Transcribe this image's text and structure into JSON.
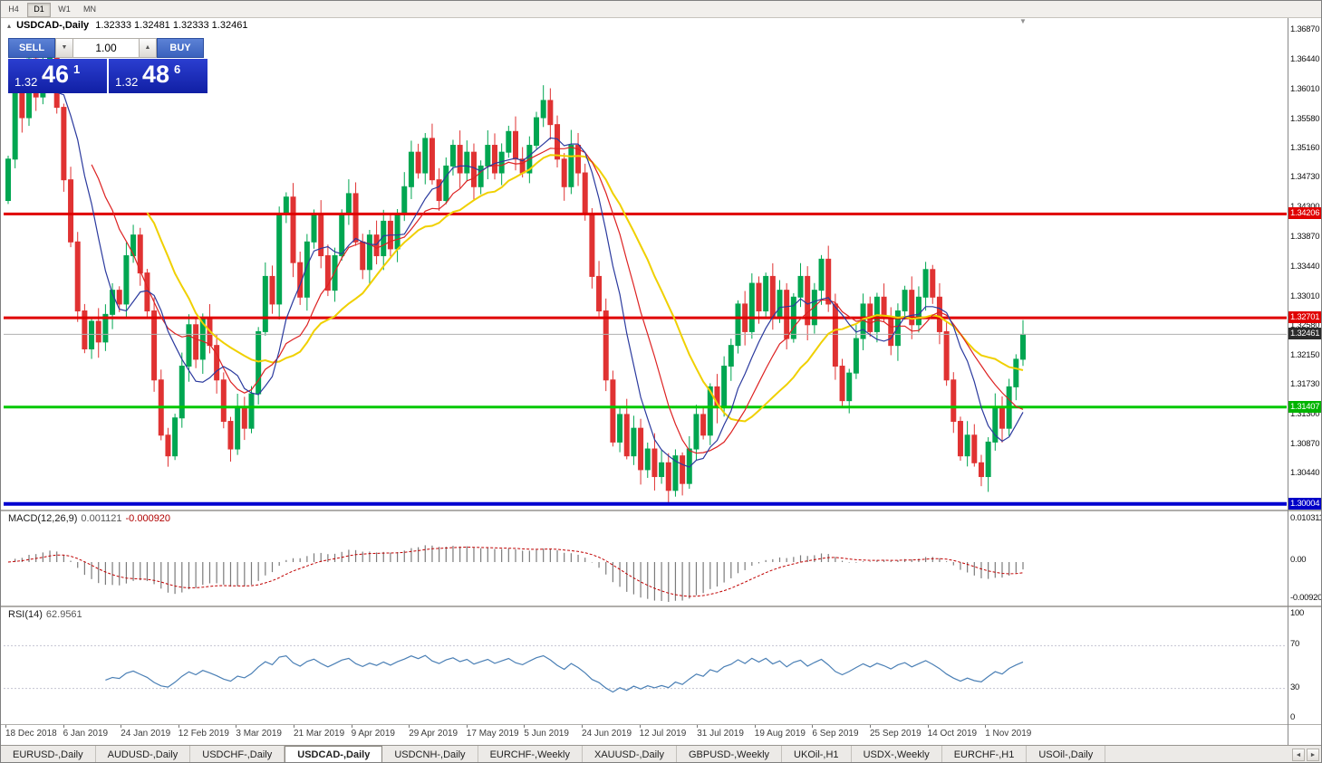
{
  "toolbar": {
    "timeframes": [
      {
        "label": "H4",
        "active": false
      },
      {
        "label": "D1",
        "active": true
      },
      {
        "label": "W1",
        "active": false
      },
      {
        "label": "MN",
        "active": false
      }
    ]
  },
  "chart_header": {
    "collapse_icon": "▴",
    "title": "USDCAD-,Daily",
    "ohlc": "1.32333 1.32481 1.32333 1.32461",
    "shift_marker_icon": "▼"
  },
  "trade_panel": {
    "sell_label": "SELL",
    "buy_label": "BUY",
    "volume": "1.00",
    "vol_down_icon": "▼",
    "vol_up_icon": "▲",
    "sell_price": {
      "small": "1.32",
      "big": "46",
      "sup": "1"
    },
    "buy_price": {
      "small": "1.32",
      "big": "48",
      "sup": "6"
    }
  },
  "price_axis": {
    "ticks": [
      "1.36870",
      "1.36440",
      "1.36010",
      "1.35580",
      "1.35160",
      "1.34730",
      "1.34300",
      "1.33870",
      "1.33440",
      "1.33010",
      "1.32580",
      "1.32150",
      "1.31730",
      "1.31300",
      "1.30870",
      "1.30440"
    ]
  },
  "macd_panel": {
    "label": "MACD(12,26,9)",
    "value_main": "0.001121",
    "value_signal": "-0.000920",
    "axis": [
      "0.010311",
      "0.00",
      "-0.009201"
    ]
  },
  "rsi_panel": {
    "label": "RSI(14)",
    "value": "62.9561",
    "axis": [
      "100",
      "70",
      "30",
      "0"
    ]
  },
  "date_axis": [
    "18 Dec 2018",
    "6 Jan 2019",
    "24 Jan 2019",
    "12 Feb 2019",
    "3 Mar 2019",
    "21 Mar 2019",
    "9 Apr 2019",
    "29 Apr 2019",
    "17 May 2019",
    "5 Jun 2019",
    "24 Jun 2019",
    "12 Jul 2019",
    "31 Jul 2019",
    "19 Aug 2019",
    "6 Sep 2019",
    "25 Sep 2019",
    "14 Oct 2019",
    "1 Nov 2019"
  ],
  "tabs": {
    "items": [
      {
        "label": "EURUSD-,Daily",
        "active": false
      },
      {
        "label": "AUDUSD-,Daily",
        "active": false
      },
      {
        "label": "USDCHF-,Daily",
        "active": false
      },
      {
        "label": "USDCAD-,Daily",
        "active": true
      },
      {
        "label": "USDCNH-,Daily",
        "active": false
      },
      {
        "label": "EURCHF-,Weekly",
        "active": false
      },
      {
        "label": "XAUUSD-,Daily",
        "active": false
      },
      {
        "label": "GBPUSD-,Weekly",
        "active": false
      },
      {
        "label": "UKOil-,H1",
        "active": false
      },
      {
        "label": "USDX-,Weekly",
        "active": false
      },
      {
        "label": "EURCHF-,H1",
        "active": false
      },
      {
        "label": "USOil-,Daily",
        "active": false
      }
    ],
    "scroll_left": "◄",
    "scroll_right": "►"
  },
  "chart_data": {
    "type": "candlestick",
    "symbol": "USDCAD",
    "timeframe": "Daily",
    "last_ohlc": {
      "open": 1.32333,
      "high": 1.32481,
      "low": 1.32333,
      "close": 1.32461
    },
    "current_price": 1.32461,
    "price_range": {
      "top": 1.36925,
      "bottom": 1.29935
    },
    "first_open": 1.344,
    "closes": [
      1.35,
      1.362,
      1.356,
      1.3645,
      1.359,
      1.363,
      1.3655,
      1.3575,
      1.347,
      1.338,
      1.328,
      1.3225,
      1.3265,
      1.3235,
      1.3275,
      1.331,
      1.329,
      1.336,
      1.339,
      1.3335,
      1.328,
      1.318,
      1.31,
      1.307,
      1.3125,
      1.32,
      1.326,
      1.321,
      1.327,
      1.323,
      1.318,
      1.312,
      1.308,
      1.314,
      1.311,
      1.316,
      1.325,
      1.333,
      1.329,
      1.342,
      1.3445,
      1.335,
      1.33,
      1.338,
      1.342,
      1.336,
      1.331,
      1.336,
      1.342,
      1.345,
      1.338,
      1.334,
      1.339,
      1.336,
      1.341,
      1.337,
      1.342,
      1.346,
      1.351,
      1.348,
      1.353,
      1.347,
      1.344,
      1.349,
      1.352,
      1.348,
      1.351,
      1.346,
      1.349,
      1.352,
      1.348,
      1.351,
      1.354,
      1.35,
      1.348,
      1.352,
      1.356,
      1.3585,
      1.355,
      1.35,
      1.346,
      1.352,
      1.348,
      1.342,
      1.333,
      1.328,
      1.318,
      1.309,
      1.313,
      1.307,
      1.311,
      1.305,
      1.308,
      1.304,
      1.306,
      1.302,
      1.307,
      1.303,
      1.308,
      1.313,
      1.31,
      1.317,
      1.314,
      1.32,
      1.323,
      1.329,
      1.325,
      1.332,
      1.328,
      1.333,
      1.327,
      1.331,
      1.324,
      1.33,
      1.333,
      1.326,
      1.331,
      1.3355,
      1.329,
      1.32,
      1.315,
      1.319,
      1.324,
      1.329,
      1.325,
      1.33,
      1.327,
      1.323,
      1.328,
      1.331,
      1.326,
      1.33,
      1.334,
      1.33,
      1.325,
      1.318,
      1.312,
      1.307,
      1.31,
      1.306,
      1.304,
      1.309,
      1.314,
      1.311,
      1.317,
      1.321,
      1.3246
    ],
    "colors": {
      "up": "#00a651",
      "down": "#e03232"
    },
    "moving_averages": [
      {
        "period": 21,
        "color": "#f0d000",
        "width": 2
      },
      {
        "period": 13,
        "color": "#dd2222",
        "width": 1.2
      },
      {
        "period": 8,
        "color": "#2b3a9e",
        "width": 1.2
      }
    ],
    "hlines": [
      {
        "price": 1.34206,
        "label": "1.34206",
        "line_color": "#e00000",
        "line_width": 3,
        "badge_bg": "#e00000"
      },
      {
        "price": 1.32701,
        "label": "1.32701",
        "line_color": "#e00000",
        "line_width": 3,
        "badge_bg": "#e00000"
      },
      {
        "price": 1.31407,
        "label": "1.31407",
        "line_color": "#00c800",
        "line_width": 3,
        "badge_bg": "#00b400"
      },
      {
        "price": 1.30004,
        "label": "1.30004",
        "line_color": "#0000d0",
        "line_width": 4,
        "badge_bg": "#0000c8"
      },
      {
        "price": 1.32461,
        "label": "1.32461",
        "line_color": "#b0b0b0",
        "line_width": 1,
        "badge_bg": "#2b2b2b"
      }
    ],
    "macd": {
      "fast": 12,
      "slow": 26,
      "signal": 9,
      "main_value": 0.001121,
      "signal_value": -0.00092,
      "axis_range": [
        -0.009201,
        0.010311
      ]
    },
    "rsi": {
      "period": 14,
      "value": 62.9561,
      "range": [
        0,
        100
      ],
      "levels": [
        30,
        70
      ]
    }
  }
}
